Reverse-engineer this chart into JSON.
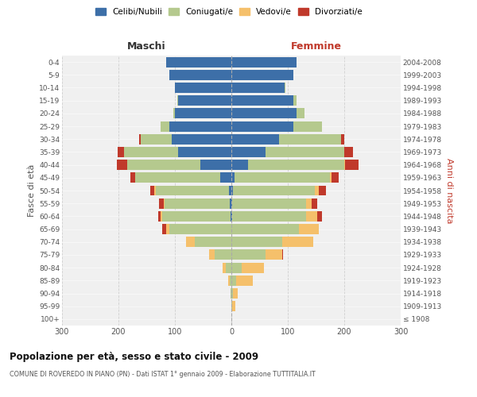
{
  "age_groups": [
    "100+",
    "95-99",
    "90-94",
    "85-89",
    "80-84",
    "75-79",
    "70-74",
    "65-69",
    "60-64",
    "55-59",
    "50-54",
    "45-49",
    "40-44",
    "35-39",
    "30-34",
    "25-29",
    "20-24",
    "15-19",
    "10-14",
    "5-9",
    "0-4"
  ],
  "birth_years": [
    "≤ 1908",
    "1909-1913",
    "1914-1918",
    "1919-1923",
    "1924-1928",
    "1929-1933",
    "1934-1938",
    "1939-1943",
    "1944-1948",
    "1949-1953",
    "1954-1958",
    "1959-1963",
    "1964-1968",
    "1969-1973",
    "1974-1978",
    "1979-1983",
    "1984-1988",
    "1989-1993",
    "1994-1998",
    "1999-2003",
    "2004-2008"
  ],
  "males": {
    "celibi": [
      0,
      0,
      0,
      0,
      0,
      0,
      0,
      0,
      2,
      3,
      4,
      20,
      55,
      95,
      105,
      110,
      100,
      95,
      100,
      110,
      115
    ],
    "coniugati": [
      0,
      0,
      1,
      3,
      10,
      30,
      65,
      110,
      120,
      115,
      130,
      150,
      130,
      95,
      55,
      15,
      3,
      1,
      0,
      0,
      0
    ],
    "vedovi": [
      0,
      0,
      0,
      2,
      5,
      10,
      15,
      5,
      3,
      2,
      2,
      1,
      0,
      0,
      0,
      0,
      0,
      0,
      0,
      0,
      0
    ],
    "divorziati": [
      0,
      0,
      0,
      0,
      0,
      0,
      0,
      8,
      5,
      8,
      7,
      8,
      18,
      12,
      3,
      0,
      0,
      0,
      0,
      0,
      0
    ]
  },
  "females": {
    "nubili": [
      0,
      0,
      0,
      0,
      0,
      0,
      0,
      0,
      2,
      2,
      3,
      5,
      30,
      60,
      85,
      110,
      115,
      110,
      95,
      110,
      115
    ],
    "coniugate": [
      0,
      2,
      3,
      8,
      18,
      60,
      90,
      120,
      130,
      130,
      145,
      170,
      170,
      140,
      110,
      50,
      15,
      5,
      1,
      0,
      0
    ],
    "vedove": [
      0,
      5,
      8,
      30,
      40,
      30,
      55,
      35,
      20,
      10,
      7,
      3,
      1,
      0,
      0,
      0,
      0,
      0,
      0,
      0,
      0
    ],
    "divorziate": [
      0,
      0,
      0,
      0,
      0,
      2,
      0,
      0,
      8,
      10,
      12,
      12,
      25,
      15,
      5,
      0,
      0,
      0,
      0,
      0,
      0
    ]
  },
  "colors": {
    "celibi": "#3d6fa8",
    "coniugati": "#b5c98e",
    "vedovi": "#f5c06b",
    "divorziati": "#c0392b"
  },
  "xlim": 300,
  "title": "Popolazione per età, sesso e stato civile - 2009",
  "subtitle": "COMUNE DI ROVEREDO IN PIANO (PN) - Dati ISTAT 1° gennaio 2009 - Elaborazione TUTTITALIA.IT",
  "ylabel_left": "Fasce di età",
  "ylabel_right": "Anni di nascita",
  "xlabel_left": "Maschi",
  "xlabel_right": "Femmine",
  "bg_color": "#ffffff",
  "plot_bg": "#f0f0f0",
  "grid_color": "#cccccc"
}
